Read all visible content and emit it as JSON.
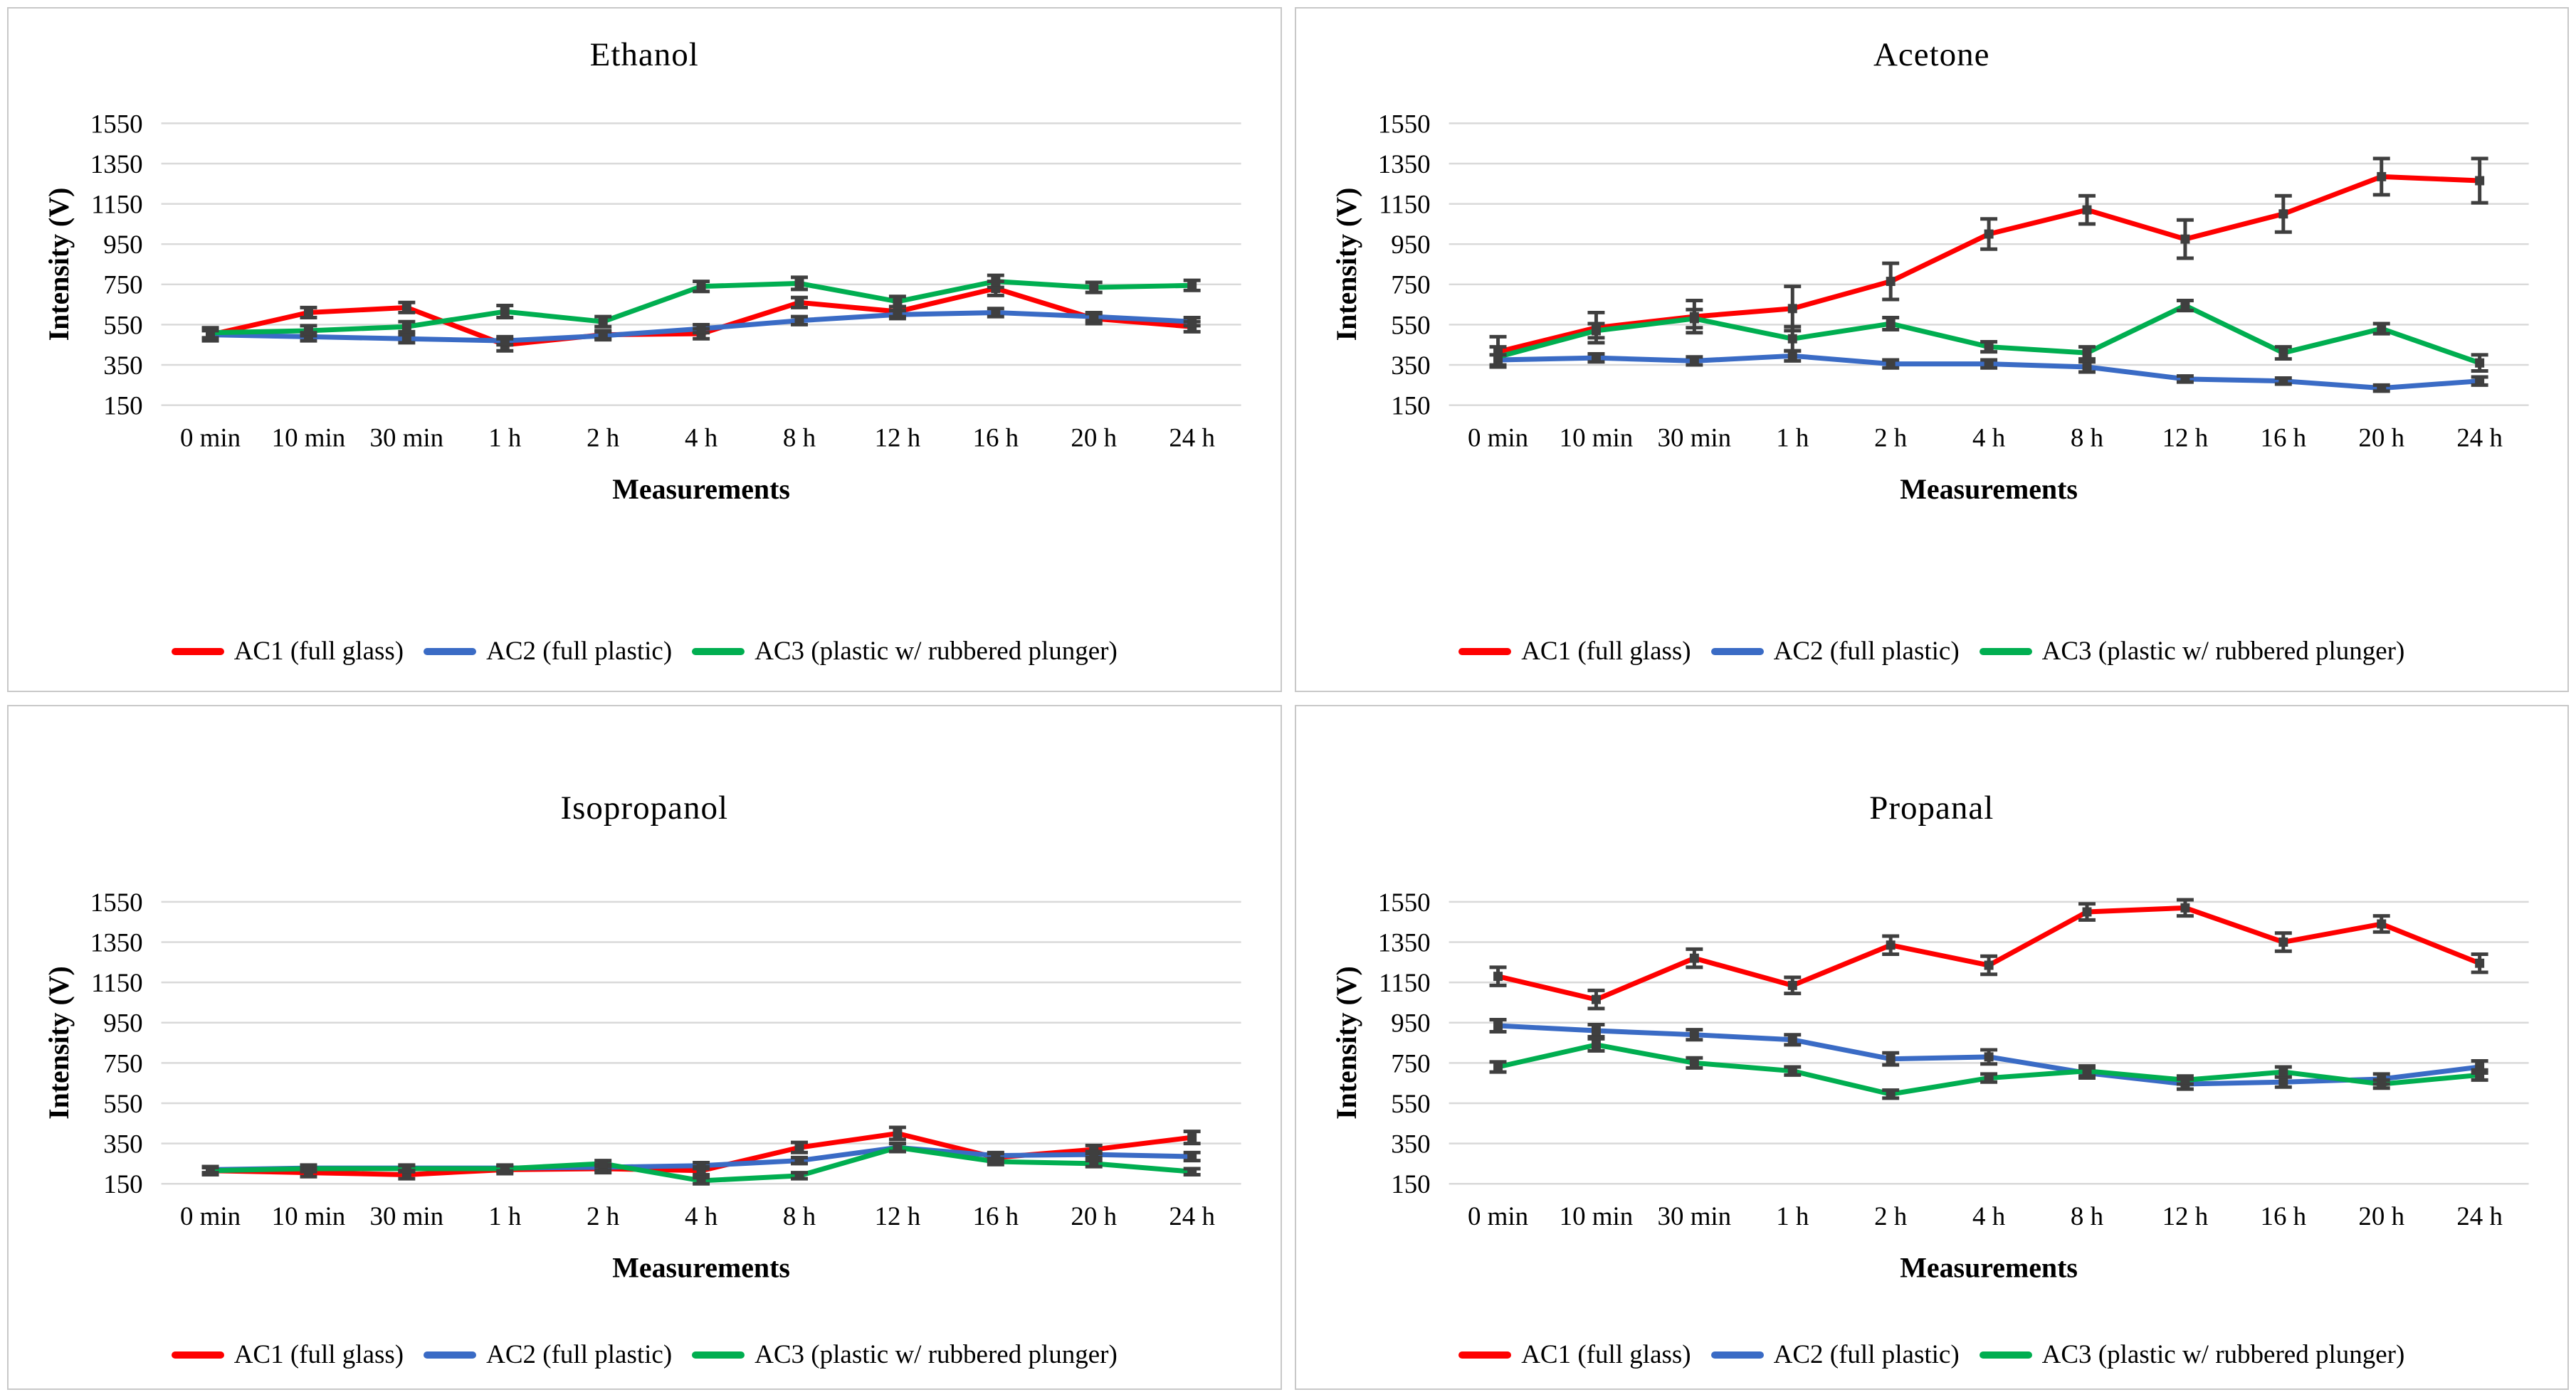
{
  "window": {
    "background": "#ffffff"
  },
  "colors": {
    "ac1": "#fe0000",
    "ac2": "#3a6bc5",
    "ac3": "#00ae50",
    "error_bar": "#3f3f3f",
    "gridline": "#d9d9d9",
    "panel_border": "#c8c8c8",
    "text": "#000000"
  },
  "chart_data": [
    {
      "type": "line",
      "title": "Ethanol",
      "xlabel": "Measurements",
      "ylabel": "Intensity (V)",
      "categories": [
        "0 min",
        "10 min",
        "30 min",
        "1 h",
        "2 h",
        "4 h",
        "8 h",
        "12 h",
        "16 h",
        "20 h",
        "24 h"
      ],
      "yticks": [
        150,
        350,
        550,
        750,
        950,
        1150,
        1350,
        1550
      ],
      "ylim": [
        150,
        1550
      ],
      "grid": "horizontal",
      "legend_position": "bottom",
      "error_bars": true,
      "series": [
        {
          "id": "ac1",
          "name": "AC1 (full glass)",
          "color": "#fe0000",
          "values": [
            500,
            610,
            635,
            450,
            500,
            505,
            660,
            615,
            730,
            580,
            540
          ],
          "errors": [
            30,
            25,
            25,
            30,
            20,
            25,
            25,
            25,
            35,
            25,
            25
          ]
        },
        {
          "id": "ac2",
          "name": "AC2 (full plastic)",
          "color": "#3a6bc5",
          "values": [
            500,
            490,
            480,
            470,
            495,
            530,
            570,
            600,
            610,
            590,
            565
          ],
          "errors": [
            20,
            20,
            20,
            20,
            20,
            20,
            20,
            20,
            20,
            20,
            20
          ]
        },
        {
          "id": "ac3",
          "name": "AC3 (plastic w/ rubbered plunger)",
          "color": "#00ae50",
          "values": [
            510,
            520,
            540,
            615,
            565,
            740,
            755,
            665,
            765,
            735,
            745
          ],
          "errors": [
            25,
            25,
            25,
            30,
            25,
            25,
            30,
            25,
            30,
            25,
            25
          ]
        }
      ]
    },
    {
      "type": "line",
      "title": "Acetone",
      "xlabel": "Measurements",
      "ylabel": "Intensity (V)",
      "categories": [
        "0 min",
        "10 min",
        "30 min",
        "1 h",
        "2 h",
        "4 h",
        "8 h",
        "12 h",
        "16 h",
        "20 h",
        "24 h"
      ],
      "yticks": [
        150,
        350,
        550,
        750,
        950,
        1150,
        1350,
        1550
      ],
      "ylim": [
        150,
        1550
      ],
      "grid": "horizontal",
      "legend_position": "bottom",
      "error_bars": true,
      "series": [
        {
          "id": "ac1",
          "name": "AC1 (full glass)",
          "color": "#fe0000",
          "values": [
            415,
            535,
            590,
            630,
            765,
            1000,
            1120,
            975,
            1100,
            1285,
            1265
          ],
          "errors": [
            75,
            75,
            80,
            110,
            90,
            75,
            70,
            95,
            90,
            90,
            110
          ]
        },
        {
          "id": "ac2",
          "name": "AC2 (full plastic)",
          "color": "#3a6bc5",
          "values": [
            375,
            385,
            370,
            395,
            355,
            355,
            340,
            280,
            270,
            235,
            270
          ],
          "errors": [
            25,
            20,
            20,
            25,
            20,
            20,
            25,
            15,
            15,
            15,
            20
          ]
        },
        {
          "id": "ac3",
          "name": "AC3 (plastic w/ rubbered plunger)",
          "color": "#00ae50",
          "values": [
            390,
            520,
            580,
            480,
            555,
            440,
            410,
            645,
            410,
            530,
            360
          ],
          "errors": [
            50,
            35,
            45,
            60,
            30,
            25,
            30,
            25,
            30,
            25,
            40
          ]
        }
      ]
    },
    {
      "type": "line",
      "title": "Isopropanol",
      "xlabel": "Measurements",
      "ylabel": "Intensity (V)",
      "categories": [
        "0 min",
        "10 min",
        "30 min",
        "1 h",
        "2 h",
        "4 h",
        "8 h",
        "12 h",
        "16 h",
        "20 h",
        "24 h"
      ],
      "yticks": [
        150,
        350,
        550,
        750,
        950,
        1150,
        1350,
        1550
      ],
      "ylim": [
        150,
        1550
      ],
      "grid": "horizontal",
      "legend_position": "bottom",
      "error_bars": true,
      "series": [
        {
          "id": "ac1",
          "name": "AC1 (full glass)",
          "color": "#fe0000",
          "values": [
            215,
            205,
            195,
            220,
            225,
            215,
            330,
            400,
            280,
            320,
            380
          ],
          "errors": [
            20,
            20,
            20,
            20,
            20,
            20,
            25,
            30,
            20,
            20,
            30
          ]
        },
        {
          "id": "ac2",
          "name": "AC2 (full plastic)",
          "color": "#3a6bc5",
          "values": [
            220,
            228,
            228,
            228,
            232,
            240,
            265,
            330,
            290,
            295,
            285
          ],
          "errors": [
            15,
            15,
            15,
            15,
            15,
            15,
            15,
            20,
            15,
            15,
            20
          ]
        },
        {
          "id": "ac3",
          "name": "AC3 (plastic w/ rubbered plunger)",
          "color": "#00ae50",
          "values": [
            215,
            225,
            225,
            225,
            250,
            165,
            190,
            330,
            260,
            250,
            210
          ],
          "errors": [
            15,
            15,
            15,
            15,
            15,
            15,
            15,
            20,
            15,
            15,
            15
          ]
        }
      ]
    },
    {
      "type": "line",
      "title": "Propanal",
      "xlabel": "Measurements",
      "ylabel": "Intensity (V)",
      "categories": [
        "0 min",
        "10 min",
        "30 min",
        "1 h",
        "2 h",
        "4 h",
        "8 h",
        "12 h",
        "16 h",
        "20 h",
        "24 h"
      ],
      "yticks": [
        150,
        350,
        550,
        750,
        950,
        1150,
        1350,
        1550
      ],
      "ylim": [
        150,
        1550
      ],
      "grid": "horizontal",
      "legend_position": "bottom",
      "error_bars": true,
      "series": [
        {
          "id": "ac1",
          "name": "AC1 (full glass)",
          "color": "#fe0000",
          "values": [
            1180,
            1065,
            1270,
            1135,
            1335,
            1235,
            1500,
            1520,
            1350,
            1440,
            1245
          ],
          "errors": [
            45,
            45,
            45,
            40,
            45,
            45,
            40,
            40,
            45,
            40,
            45
          ]
        },
        {
          "id": "ac2",
          "name": "AC2 (full plastic)",
          "color": "#3a6bc5",
          "values": [
            935,
            910,
            890,
            865,
            770,
            780,
            700,
            645,
            655,
            670,
            730
          ],
          "errors": [
            30,
            30,
            25,
            25,
            30,
            35,
            25,
            25,
            25,
            25,
            30
          ]
        },
        {
          "id": "ac3",
          "name": "AC3 (plastic w/ rubbered plunger)",
          "color": "#00ae50",
          "values": [
            730,
            840,
            750,
            710,
            595,
            675,
            710,
            665,
            705,
            645,
            690
          ],
          "errors": [
            25,
            30,
            25,
            20,
            20,
            20,
            25,
            20,
            25,
            20,
            25
          ]
        }
      ]
    }
  ]
}
